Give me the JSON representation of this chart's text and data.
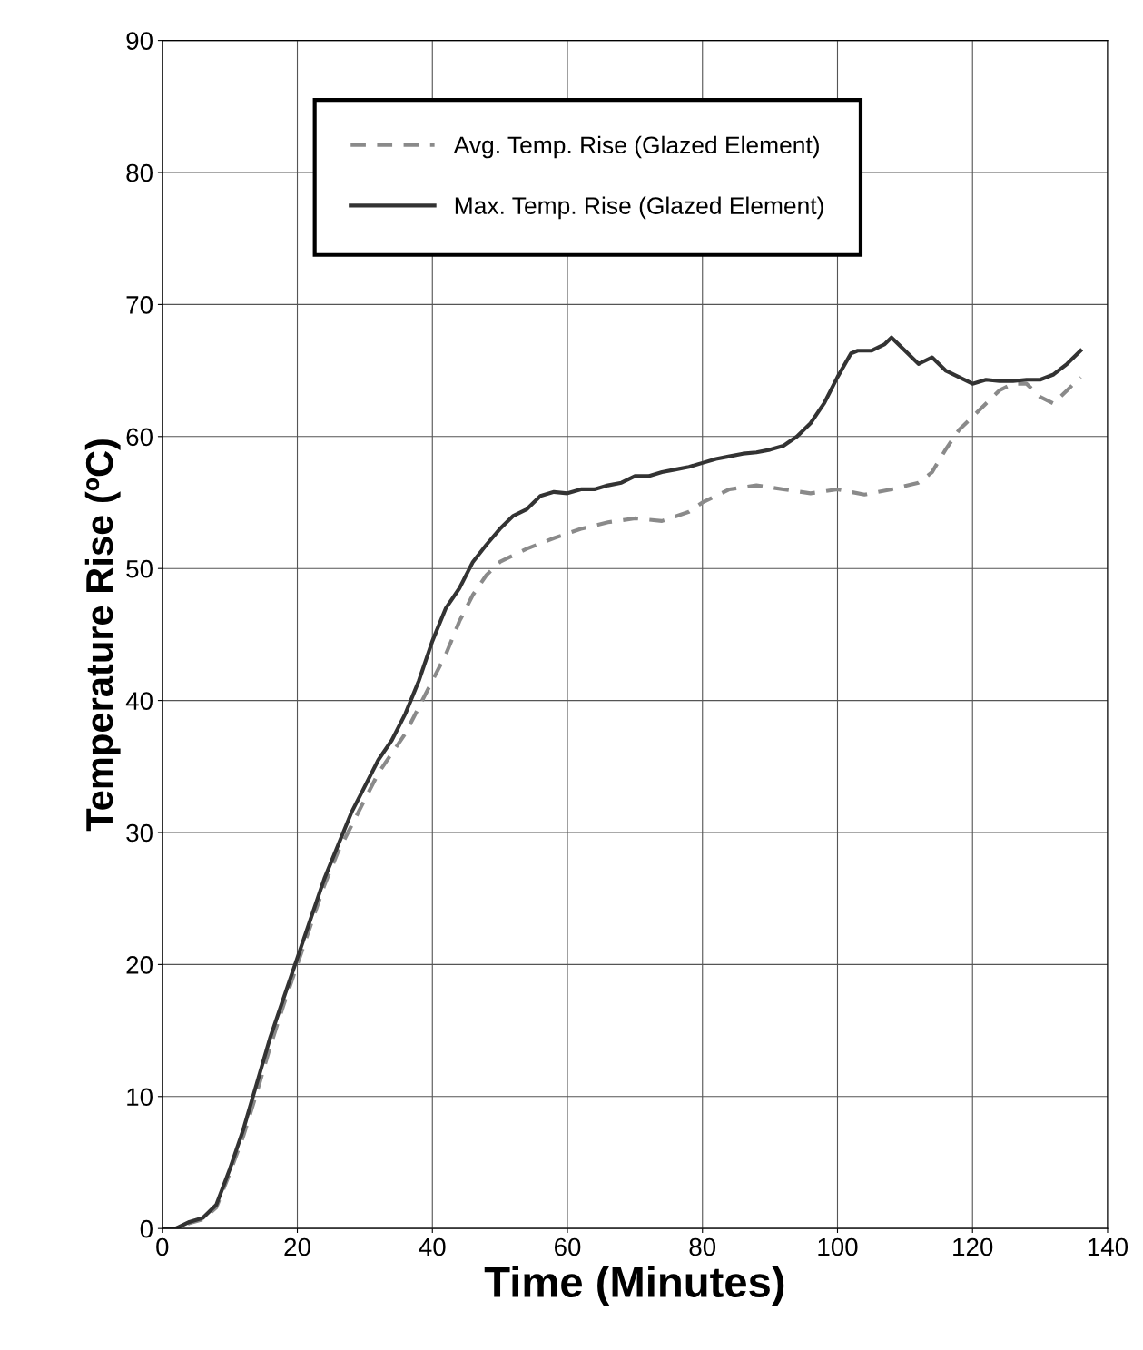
{
  "chart_data": {
    "type": "line",
    "xlabel": "Time (Minutes)",
    "ylabel": "Temperature Rise (ºC)",
    "xlim": [
      0,
      140
    ],
    "xticks": [
      0,
      20,
      40,
      60,
      80,
      100,
      120,
      140
    ],
    "ylim": [
      0,
      90
    ],
    "yticks": [
      0,
      10,
      20,
      30,
      40,
      50,
      60,
      70,
      80,
      90
    ],
    "grid": true,
    "legend": "top",
    "marker": "none",
    "series": [
      {
        "name": "Avg. Temp. Rise (Glazed Element)",
        "color": "#8a8a8a",
        "line_style": "dashed",
        "x": [
          0,
          2,
          4,
          6,
          8,
          10,
          12,
          14,
          16,
          18,
          20,
          22,
          24,
          26,
          28,
          30,
          32,
          34,
          36,
          38,
          40,
          42,
          44,
          46,
          48,
          50,
          54,
          58,
          62,
          66,
          70,
          74,
          78,
          80,
          84,
          88,
          92,
          96,
          100,
          104,
          108,
          112,
          114,
          116,
          118,
          120,
          122,
          124,
          126,
          128,
          130,
          132,
          134,
          136
        ],
        "values": [
          0,
          0,
          0.4,
          0.7,
          1.6,
          4.2,
          7,
          10.3,
          13.8,
          17,
          20,
          23,
          26,
          28.5,
          30.5,
          32.5,
          34.5,
          36,
          37.5,
          39.5,
          41.5,
          43.5,
          46,
          48,
          49.5,
          50.5,
          51.5,
          52.3,
          53,
          53.5,
          53.8,
          53.6,
          54.3,
          55,
          56,
          56.3,
          56,
          55.7,
          56,
          55.6,
          56,
          56.5,
          57.3,
          59,
          60.5,
          61.5,
          62.5,
          63.5,
          64,
          64,
          63,
          62.5,
          63.5,
          64.5
        ]
      },
      {
        "name": "Max. Temp. Rise (Glazed Element)",
        "color": "#333333",
        "line_style": "solid",
        "x": [
          0,
          2,
          4,
          6,
          8,
          10,
          12,
          14,
          16,
          18,
          20,
          22,
          24,
          26,
          28,
          30,
          32,
          34,
          36,
          38,
          40,
          42,
          44,
          46,
          48,
          50,
          52,
          54,
          56,
          58,
          60,
          62,
          64,
          66,
          68,
          70,
          72,
          74,
          76,
          78,
          80,
          82,
          84,
          86,
          88,
          90,
          92,
          94,
          96,
          98,
          100,
          102,
          103,
          105,
          107,
          108,
          110,
          112,
          114,
          116,
          118,
          120,
          122,
          124,
          126,
          128,
          130,
          132,
          134,
          136
        ],
        "values": [
          0,
          0,
          0.5,
          0.8,
          1.8,
          4.5,
          7.5,
          11,
          14.5,
          17.5,
          20.5,
          23.5,
          26.5,
          29,
          31.5,
          33.5,
          35.5,
          37,
          39,
          41.5,
          44.5,
          47,
          48.5,
          50.5,
          51.8,
          53,
          54,
          54.5,
          55.5,
          55.8,
          55.7,
          56,
          56,
          56.3,
          56.5,
          57,
          57,
          57.3,
          57.5,
          57.7,
          58,
          58.3,
          58.5,
          58.7,
          58.8,
          59,
          59.3,
          60,
          61,
          62.5,
          64.5,
          66.3,
          66.5,
          66.5,
          67,
          67.5,
          66.5,
          65.5,
          66,
          65,
          64.5,
          64,
          64.3,
          64.2,
          64.2,
          64.3,
          64.3,
          64.7,
          65.5,
          66.5
        ]
      }
    ]
  }
}
